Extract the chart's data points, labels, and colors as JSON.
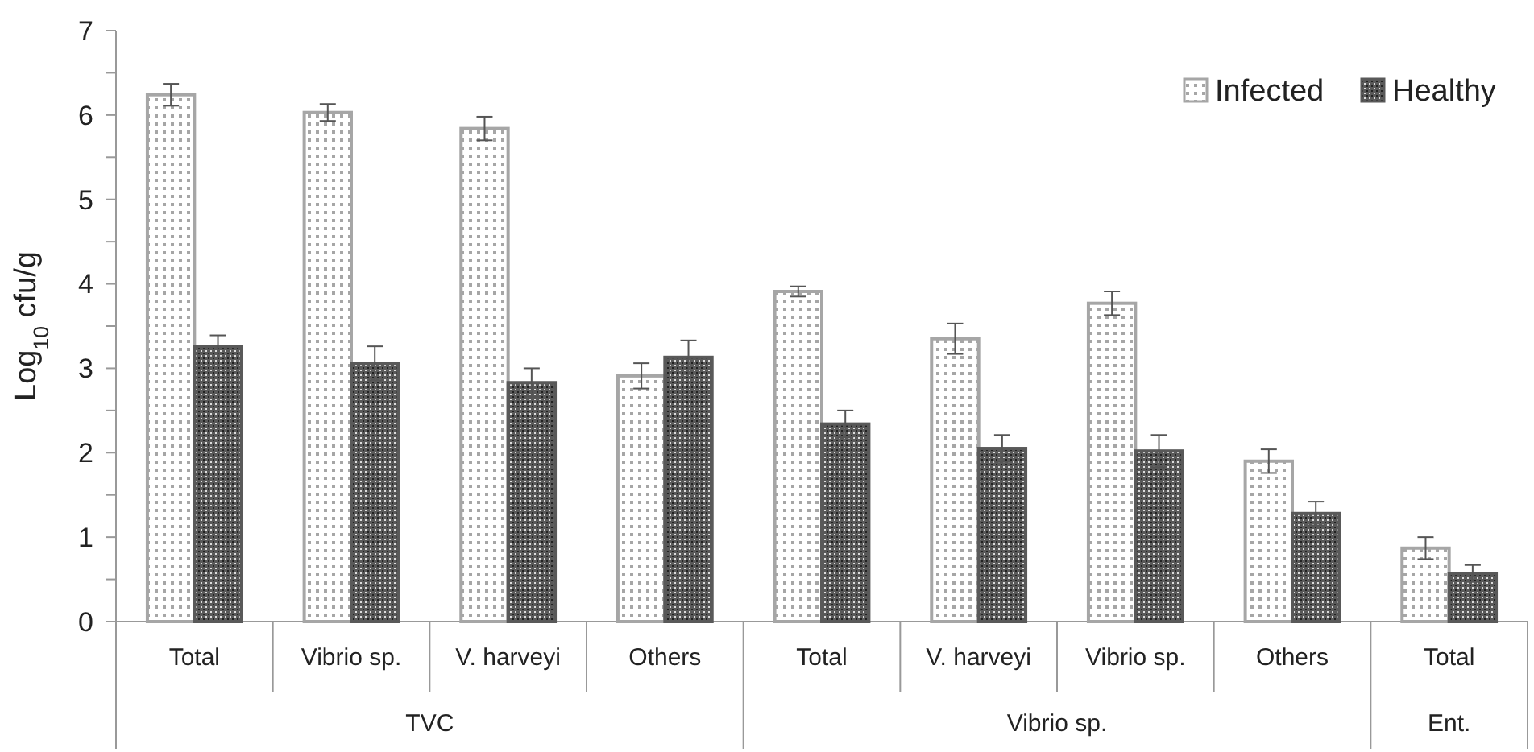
{
  "chart_data": {
    "type": "bar",
    "ylabel": "Log$_{10}$ cfu/g",
    "categories": [
      "Total",
      "Vibrio sp.",
      "V. harveyi",
      "Others",
      "Total",
      "V. harveyi",
      "Vibrio sp.",
      "Others",
      "Total"
    ],
    "annotations": [
      "TVC",
      "Vibrio sp.",
      "Ent."
    ],
    "series": [
      {
        "name": "Infected",
        "color": "#a6a6a6",
        "values": [
          6.24,
          6.03,
          5.84,
          2.91,
          3.91,
          3.35,
          3.77,
          1.9,
          0.87
        ],
        "errors": [
          0.13,
          0.1,
          0.14,
          0.15,
          0.06,
          0.18,
          0.14,
          0.14,
          0.13
        ]
      },
      {
        "name": "Healthy",
        "color": "#595959",
        "values": [
          3.26,
          3.06,
          2.83,
          3.13,
          2.34,
          2.05,
          2.02,
          1.28,
          0.57
        ],
        "errors": [
          0.13,
          0.2,
          0.17,
          0.2,
          0.16,
          0.16,
          0.19,
          0.14,
          0.1
        ]
      }
    ],
    "ylim": [
      0,
      7
    ],
    "yticks": [
      0,
      {
        "value": 0.5,
        "label": null
      },
      1,
      {
        "value": 1.5,
        "label": null
      },
      2,
      {
        "value": 2.5,
        "label": null
      },
      3,
      {
        "value": 3.5,
        "label": null
      },
      4,
      {
        "value": 4.5,
        "label": null
      },
      5,
      {
        "value": 5.5,
        "label": null
      },
      6,
      {
        "value": 6.5,
        "label": null
      },
      7
    ],
    "legend": "top right",
    "grid": false
  }
}
